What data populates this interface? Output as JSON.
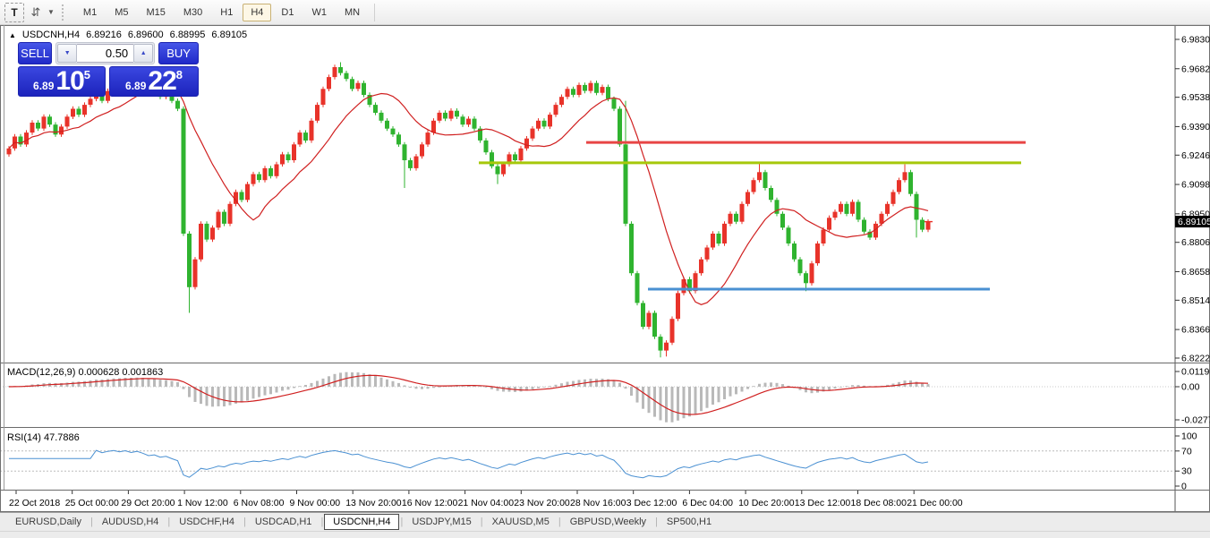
{
  "toolbar": {
    "text_tool_label": "T",
    "shift_tool_glyph": "⇵",
    "dropdown_caret": "▼",
    "timeframes": [
      "M1",
      "M5",
      "M15",
      "M30",
      "H1",
      "H4",
      "D1",
      "W1",
      "MN"
    ],
    "active_timeframe": "H4"
  },
  "chart": {
    "collapse_arrow": "▲",
    "symbol": "USDCNH,H4",
    "ohlc": {
      "open": "6.89216",
      "high": "6.89600",
      "low": "6.88995",
      "close": "6.89105"
    },
    "trade_panel": {
      "sell_label": "SELL",
      "buy_label": "BUY",
      "volume": "0.50",
      "spin_down_glyph": "▼",
      "spin_up_glyph": "▲",
      "sell_price_small": "6.89",
      "sell_price_big": "10",
      "sell_price_sup": "5",
      "buy_price_small": "6.89",
      "buy_price_big": "22",
      "buy_price_sup": "8"
    }
  },
  "chart_data": [
    {
      "type": "candlestick",
      "title": "USDCNH,H4",
      "y_axis_ticks": [
        "6.98300",
        "6.96820",
        "6.95380",
        "6.93900",
        "6.92460",
        "6.90980",
        "6.89500",
        "6.88060",
        "6.86580",
        "6.85140",
        "6.83660",
        "6.82220"
      ],
      "y_range_top": 6.983,
      "y_range_span": 0.1608,
      "x_axis_labels": [
        "22 Oct 2018",
        "25 Oct 00:00",
        "29 Oct 20:00",
        "1 Nov 12:00",
        "6 Nov 08:00",
        "9 Nov 00:00",
        "13 Nov 20:00",
        "16 Nov 12:00",
        "21 Nov 04:00",
        "23 Nov 20:00",
        "28 Nov 16:00",
        "3 Dec 12:00",
        "6 Dec 04:00",
        "10 Dec 20:00",
        "13 Dec 12:00",
        "18 Dec 08:00",
        "21 Dec 00:00"
      ],
      "first_open": 6.925,
      "closes": [
        6.928,
        6.934,
        6.93,
        6.936,
        6.941,
        6.938,
        6.944,
        6.94,
        6.935,
        6.939,
        6.944,
        6.948,
        6.945,
        6.95,
        6.953,
        6.956,
        6.952,
        6.957,
        6.96,
        6.958,
        6.962,
        6.959,
        6.963,
        6.96,
        6.956,
        6.958,
        6.954,
        6.956,
        6.952,
        6.948,
        6.885,
        6.858,
        6.872,
        6.89,
        6.882,
        6.888,
        6.896,
        6.89,
        6.9,
        6.906,
        6.902,
        6.91,
        6.915,
        6.912,
        6.918,
        6.914,
        6.92,
        6.925,
        6.922,
        6.93,
        6.936,
        6.932,
        6.942,
        6.95,
        6.958,
        6.964,
        6.969,
        6.966,
        6.963,
        6.958,
        6.961,
        6.955,
        6.95,
        6.946,
        6.942,
        6.938,
        6.935,
        6.93,
        6.922,
        6.918,
        6.924,
        6.93,
        6.936,
        6.942,
        6.946,
        6.943,
        6.947,
        6.944,
        6.94,
        6.943,
        6.938,
        6.932,
        6.926,
        6.919,
        6.915,
        6.92,
        6.925,
        6.922,
        6.928,
        6.933,
        6.938,
        6.942,
        6.939,
        6.945,
        6.95,
        6.954,
        6.958,
        6.955,
        6.96,
        6.957,
        6.961,
        6.956,
        6.959,
        6.953,
        6.948,
        6.93,
        6.89,
        6.865,
        6.85,
        6.838,
        6.845,
        6.833,
        6.826,
        6.83,
        6.842,
        6.855,
        6.862,
        6.856,
        6.865,
        6.872,
        6.878,
        6.885,
        6.88,
        6.89,
        6.895,
        6.891,
        6.9,
        6.906,
        6.912,
        6.916,
        6.908,
        6.902,
        6.895,
        6.888,
        6.88,
        6.872,
        6.865,
        6.86,
        6.87,
        6.88,
        6.887,
        6.893,
        6.896,
        6.9,
        6.895,
        6.901,
        6.892,
        6.886,
        6.883,
        6.89,
        6.895,
        6.9,
        6.906,
        6.912,
        6.916,
        6.905,
        6.892,
        6.887,
        6.891
      ],
      "wick_overrides": {
        "31": [
          null,
          6.845
        ],
        "57": [
          6.9715,
          null
        ],
        "68": [
          null,
          6.908
        ],
        "84": [
          null,
          6.91
        ],
        "106": [
          6.952,
          null
        ],
        "112": [
          null,
          6.8225
        ],
        "113": [
          null,
          6.823
        ],
        "129": [
          6.921,
          null
        ],
        "137": [
          null,
          6.856
        ],
        "154": [
          6.92,
          null
        ],
        "156": [
          null,
          6.883
        ]
      },
      "ma_period": 13,
      "horizontal_lines": [
        {
          "price": 6.931,
          "color": "#e84545",
          "x_start": 655,
          "x_end": 1146
        },
        {
          "price": 6.9207,
          "color": "#a6c80a",
          "x_start": 535,
          "x_end": 1141
        },
        {
          "price": 6.857,
          "color": "#4a90d2",
          "x_start": 724,
          "x_end": 1106
        }
      ],
      "current_price": "6.89105",
      "current_price_value": 6.89105
    },
    {
      "type": "macd",
      "label": "MACD(12,26,9) 0.000628 0.001863",
      "params": [
        12,
        26,
        9
      ],
      "current_macd": "0.000628",
      "current_signal": "0.001863",
      "y_ticks": [
        "0.0119",
        "0.00",
        "-0.027754"
      ],
      "min_value": -0.027754
    },
    {
      "type": "line",
      "label": "RSI(14) 47.7886",
      "period": 14,
      "current": "47.7886",
      "y_ticks": [
        "100",
        "70",
        "30",
        "0"
      ],
      "levels": [
        70,
        30
      ]
    }
  ],
  "tabs": {
    "items": [
      "EURUSD,Daily",
      "AUDUSD,H4",
      "USDCHF,H4",
      "USDCAD,H1",
      "USDCNH,H4",
      "USDJPY,M15",
      "XAUUSD,M5",
      "GBPUSD,Weekly",
      "SP500,H1"
    ],
    "active": "USDCNH,H4"
  },
  "colors": {
    "bull": "#e8332a",
    "bear": "#2fb32f",
    "ma": "#d02020",
    "macd_hist": "#b9b9b9",
    "macd_signal": "#d02020",
    "rsi": "#4a90d2",
    "price_tag_bg": "#000000",
    "axis_text": "#000000"
  }
}
